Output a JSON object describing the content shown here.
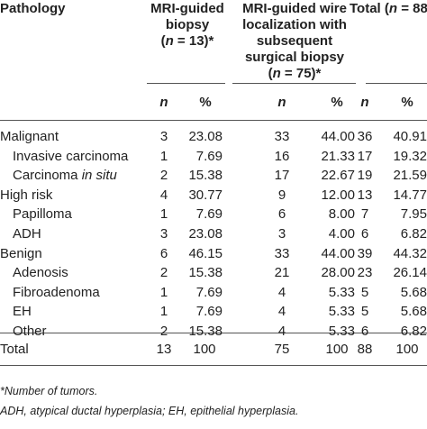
{
  "table": {
    "header": {
      "pathology": "Pathology",
      "group1": {
        "line1": "MRI-guided",
        "line2": "biopsy",
        "line3_n": "n",
        "line3_rest": " = 13)*"
      },
      "group2": {
        "line1": "MRI-guided wire",
        "line2": "localization with",
        "line3": "subsequent",
        "line4": "surgical biopsy",
        "line5_n": "n",
        "line5_rest": " = 75)*"
      },
      "group3": {
        "prefix": "Total (",
        "n": "n",
        "rest": " = 88)"
      }
    },
    "subheader": {
      "n1": "n",
      "pct1": "%",
      "n2": "n",
      "pct2": "%",
      "n3": "n",
      "pct3": "%"
    },
    "rows": [
      {
        "label": "Malignant",
        "n1": "3",
        "p1": "23.08",
        "n2": "33",
        "p2": "44.00",
        "n3": "36",
        "p3": "40.91"
      },
      {
        "label": "Invasive carcinoma",
        "n1": "1",
        "p1": "7.69",
        "n2": "16",
        "p2": "21.33",
        "n3": "17",
        "p3": "19.32"
      },
      {
        "label_prefix": "Carcinoma ",
        "label_ital": "in situ",
        "n1": "2",
        "p1": "15.38",
        "n2": "17",
        "p2": "22.67",
        "n3": "19",
        "p3": "21.59"
      },
      {
        "label": "High risk",
        "n1": "4",
        "p1": "30.77",
        "n2": "9",
        "p2": "12.00",
        "n3": "13",
        "p3": "14.77"
      },
      {
        "label": "Papilloma",
        "n1": "1",
        "p1": "7.69",
        "n2": "6",
        "p2": "8.00",
        "n3": "7",
        "p3": "7.95"
      },
      {
        "label": "ADH",
        "n1": "3",
        "p1": "23.08",
        "n2": "3",
        "p2": "4.00",
        "n3": "6",
        "p3": "6.82"
      },
      {
        "label": "Benign",
        "n1": "6",
        "p1": "46.15",
        "n2": "33",
        "p2": "44.00",
        "n3": "39",
        "p3": "44.32"
      },
      {
        "label": "Adenosis",
        "n1": "2",
        "p1": "15.38",
        "n2": "21",
        "p2": "28.00",
        "n3": "23",
        "p3": "26.14"
      },
      {
        "label": "Fibroadenoma",
        "n1": "1",
        "p1": "7.69",
        "n2": "4",
        "p2": "5.33",
        "n3": "5",
        "p3": "5.68"
      },
      {
        "label": "EH",
        "n1": "1",
        "p1": "7.69",
        "n2": "4",
        "p2": "5.33",
        "n3": "5",
        "p3": "5.68"
      },
      {
        "label": "Other",
        "n1": "2",
        "p1": "15.38",
        "n2": "4",
        "p2": "5.33",
        "n3": "6",
        "p3": "6.82"
      }
    ],
    "total": {
      "label": "Total",
      "n1": "13",
      "p1": "100",
      "n2": "75",
      "p2": "100",
      "n3": "88",
      "p3": "100"
    }
  },
  "footnotes": {
    "note1": "*Number of tumors.",
    "note2": "ADH, atypical ductal hyperplasia; EH, epithelial hyperplasia."
  }
}
